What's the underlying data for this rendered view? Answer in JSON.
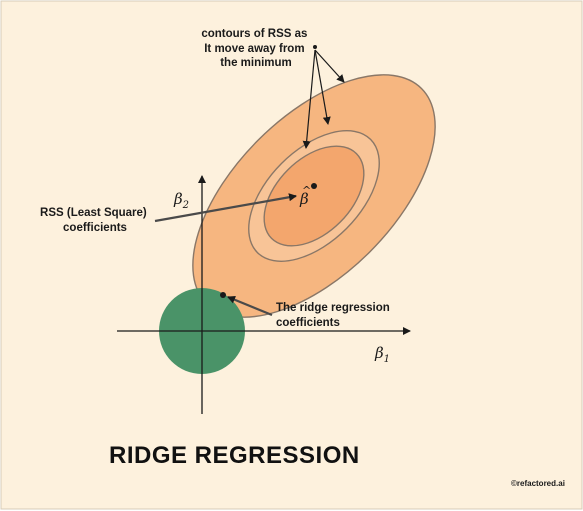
{
  "colors": {
    "background": "#fdf1dd",
    "border": "#d7ccb8",
    "ellipse_outer": "#f6b680",
    "ellipse_mid": "#f8c497",
    "ellipse_inner": "#f3a66d",
    "ellipse_stroke": "#8a7767",
    "circle": "#4a9368",
    "ink": "#1a1a1a"
  },
  "annotations": {
    "contours": [
      "contours of RSS as",
      "It move away from",
      "the minimum"
    ],
    "rss": [
      "RSS (Least Square)",
      "coefficients"
    ],
    "ridge": [
      "The ridge regression",
      "coefficients"
    ]
  },
  "axes": {
    "x_label": "β",
    "x_sub": "1",
    "y_label": "β",
    "y_sub": "2",
    "minimum_label": "β",
    "minimum_hat": "^"
  },
  "title": "RIDGE REGRESSION",
  "credit": "©refactored.ai"
}
